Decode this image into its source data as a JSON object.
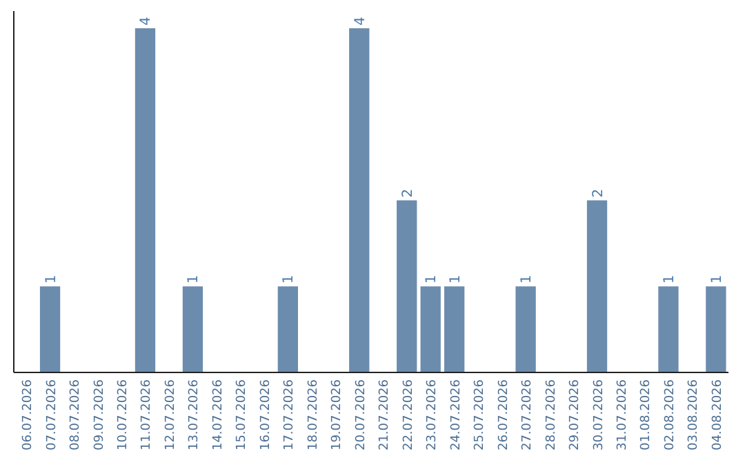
{
  "chart_data": {
    "type": "bar",
    "categories": [
      "06.07.2026",
      "07.07.2026",
      "08.07.2026",
      "09.07.2026",
      "10.07.2026",
      "11.07.2026",
      "12.07.2026",
      "13.07.2026",
      "14.07.2026",
      "15.07.2026",
      "16.07.2026",
      "17.07.2026",
      "18.07.2026",
      "19.07.2026",
      "20.07.2026",
      "21.07.2026",
      "22.07.2026",
      "23.07.2026",
      "24.07.2026",
      "25.07.2026",
      "26.07.2026",
      "27.07.2026",
      "28.07.2026",
      "29.07.2026",
      "30.07.2026",
      "31.07.2026",
      "01.08.2026",
      "02.08.2026",
      "03.08.2026",
      "04.08.2026"
    ],
    "values": [
      0,
      1,
      0,
      0,
      0,
      4,
      0,
      1,
      0,
      0,
      0,
      1,
      0,
      0,
      4,
      0,
      2,
      1,
      1,
      0,
      0,
      1,
      0,
      0,
      2,
      0,
      0,
      1,
      0,
      1
    ],
    "value_labels": [
      null,
      "1",
      null,
      null,
      null,
      "4",
      null,
      "1",
      null,
      null,
      null,
      "1",
      null,
      null,
      "4",
      null,
      "2",
      "1",
      "1",
      null,
      null,
      "1",
      null,
      null,
      "2",
      null,
      null,
      "1",
      null,
      "1"
    ],
    "color": "#6b8cad",
    "ylim": [
      0,
      4.2
    ],
    "tick_labels": "x"
  }
}
